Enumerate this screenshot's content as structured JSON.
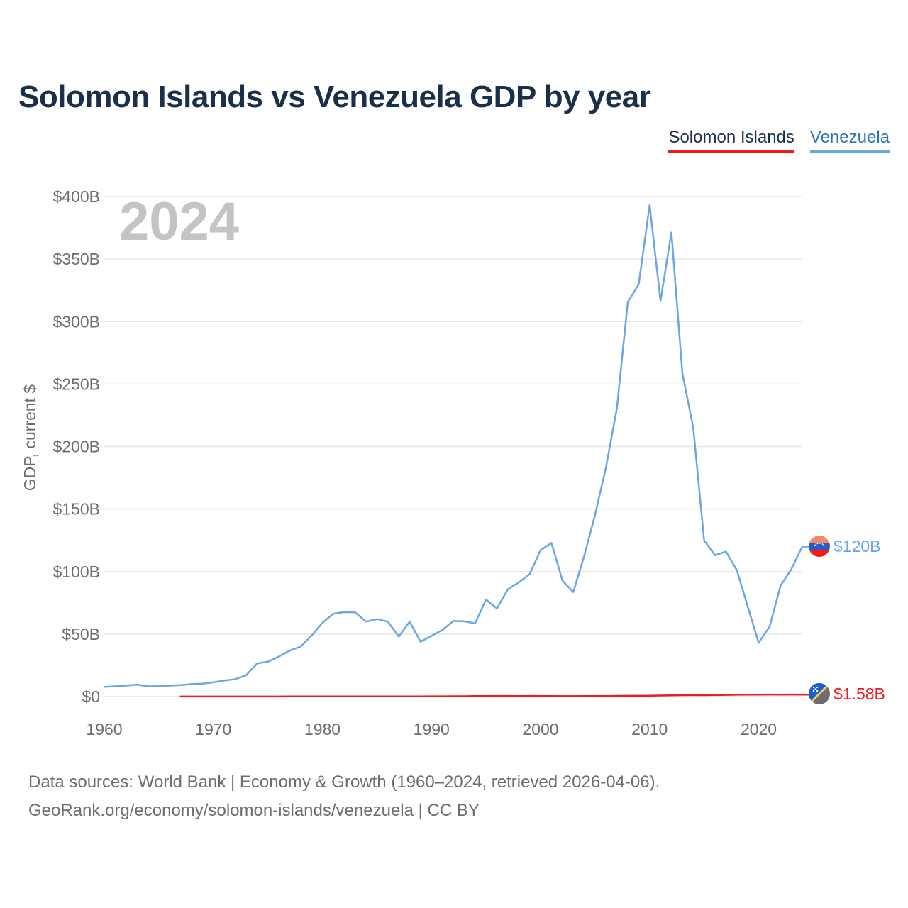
{
  "title": "Solomon Islands vs Venezuela GDP by year",
  "legend": {
    "solomon": "Solomon Islands",
    "venezuela": "Venezuela"
  },
  "footer": {
    "line1": "Data sources: World Bank | Economy & Growth (1960–2024, retrieved 2026-04-06).",
    "line2": "GeoRank.org/economy/solomon-islands/venezuela | CC BY"
  },
  "colors": {
    "solomon": "#ee1c1c",
    "venezuela": "#6aa6e4",
    "grid": "#e6e6e6",
    "axis_text": "#6d6d6d",
    "year_watermark": "#c4c4c4"
  },
  "chart_data": {
    "type": "line",
    "title": "Solomon Islands vs Venezuela GDP by year",
    "xlabel": "",
    "ylabel": "GDP, current $",
    "xlim": [
      1960,
      2024
    ],
    "ylim": [
      0,
      400
    ],
    "units": "billions of current US$",
    "year_label": "2024",
    "x_ticks": [
      "1960",
      "1970",
      "1980",
      "1990",
      "2000",
      "2010",
      "2020"
    ],
    "y_ticks": [
      {
        "value": 0,
        "label": "$0"
      },
      {
        "value": 50,
        "label": "$50B"
      },
      {
        "value": 100,
        "label": "$100B"
      },
      {
        "value": 150,
        "label": "$150B"
      },
      {
        "value": 200,
        "label": "$200B"
      },
      {
        "value": 250,
        "label": "$250B"
      },
      {
        "value": 300,
        "label": "$300B"
      },
      {
        "value": 350,
        "label": "$350B"
      },
      {
        "value": 400,
        "label": "$400B"
      }
    ],
    "series": [
      {
        "name": "Venezuela",
        "end_label": "$120B",
        "flag": "venezuela-flag",
        "x": [
          1960,
          1961,
          1962,
          1963,
          1964,
          1965,
          1966,
          1967,
          1968,
          1969,
          1970,
          1971,
          1972,
          1973,
          1974,
          1975,
          1976,
          1977,
          1978,
          1979,
          1980,
          1981,
          1982,
          1983,
          1984,
          1985,
          1986,
          1987,
          1988,
          1989,
          1990,
          1991,
          1992,
          1993,
          1994,
          1995,
          1996,
          1997,
          1998,
          1999,
          2000,
          2001,
          2002,
          2003,
          2004,
          2005,
          2006,
          2007,
          2008,
          2009,
          2010,
          2011,
          2012,
          2013,
          2014,
          2015,
          2016,
          2017,
          2018,
          2019,
          2020,
          2021,
          2022,
          2023,
          2024
        ],
        "values": [
          7.8,
          8.2,
          8.8,
          9.6,
          8.2,
          8.4,
          8.8,
          9.2,
          10.0,
          10.3,
          11.4,
          12.8,
          13.9,
          17.0,
          26.5,
          27.9,
          32.0,
          36.8,
          40.0,
          48.6,
          59.0,
          66.3,
          67.6,
          67.4,
          60.0,
          62.0,
          60.0,
          48.0,
          60.0,
          43.9,
          48.6,
          53.3,
          60.5,
          60.2,
          58.6,
          77.7,
          70.5,
          85.8,
          91.3,
          97.9,
          117.1,
          122.9,
          92.9,
          83.6,
          112.4,
          145.5,
          183.5,
          230.4,
          315.6,
          329.8,
          393.2,
          316.5,
          371.3,
          258.9,
          215.0,
          125.0,
          113.0,
          116.0,
          101.0,
          72.0,
          43.0,
          56.0,
          88.6,
          102.0,
          120.0
        ]
      },
      {
        "name": "Solomon Islands",
        "end_label": "$1.58B",
        "flag": "solomon-islands-flag",
        "x": [
          1967,
          1968,
          1969,
          1970,
          1971,
          1972,
          1973,
          1974,
          1975,
          1976,
          1977,
          1978,
          1979,
          1980,
          1981,
          1982,
          1983,
          1984,
          1985,
          1986,
          1987,
          1988,
          1989,
          1990,
          1991,
          1992,
          1993,
          1994,
          1995,
          1996,
          1997,
          1998,
          1999,
          2000,
          2001,
          2002,
          2003,
          2004,
          2005,
          2006,
          2007,
          2008,
          2009,
          2010,
          2011,
          2012,
          2013,
          2014,
          2015,
          2016,
          2017,
          2018,
          2019,
          2020,
          2021,
          2022,
          2023,
          2024
        ],
        "values": [
          0.03,
          0.03,
          0.03,
          0.03,
          0.04,
          0.04,
          0.05,
          0.06,
          0.07,
          0.08,
          0.09,
          0.11,
          0.14,
          0.16,
          0.18,
          0.18,
          0.17,
          0.19,
          0.18,
          0.14,
          0.15,
          0.17,
          0.18,
          0.21,
          0.23,
          0.26,
          0.3,
          0.37,
          0.45,
          0.51,
          0.52,
          0.47,
          0.49,
          0.44,
          0.4,
          0.33,
          0.33,
          0.38,
          0.42,
          0.47,
          0.56,
          0.63,
          0.6,
          0.7,
          0.85,
          1.0,
          1.15,
          1.18,
          1.15,
          1.25,
          1.36,
          1.5,
          1.56,
          1.55,
          1.63,
          1.6,
          1.65,
          1.58
        ]
      }
    ]
  }
}
